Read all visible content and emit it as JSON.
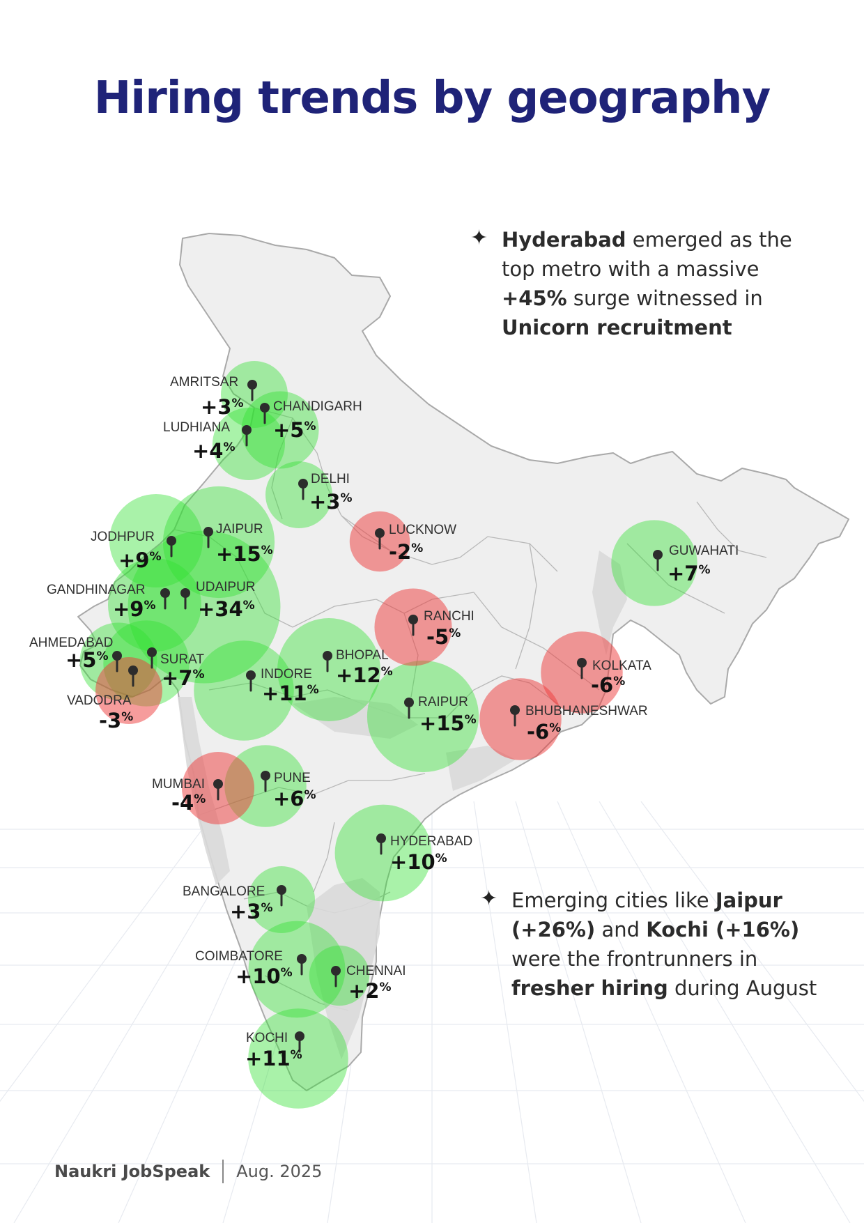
{
  "title": "Hiring trends by geography",
  "callouts": [
    {
      "parts": [
        {
          "text": "Hyderabad",
          "bold": true
        },
        {
          "text": " emerged as the top metro with a massive ",
          "bold": false
        },
        {
          "text": "+45%",
          "bold": true
        },
        {
          "text": " surge witnessed in ",
          "bold": false
        },
        {
          "text": "Unicorn recruitment",
          "bold": true
        }
      ]
    },
    {
      "parts": [
        {
          "text": "Emerging cities like ",
          "bold": false
        },
        {
          "text": "Jaipur (+26%)",
          "bold": true
        },
        {
          "text": " and ",
          "bold": false
        },
        {
          "text": "Kochi (+16%)",
          "bold": true
        },
        {
          "text": " were the frontrunners in ",
          "bold": false
        },
        {
          "text": "fresher hiring",
          "bold": true
        },
        {
          "text": " during August",
          "bold": false
        }
      ]
    }
  ],
  "cities": [
    {
      "name": "AMRITSAR",
      "change": 3,
      "label": "+3"
    },
    {
      "name": "CHANDIGARH",
      "change": 5,
      "label": "+5"
    },
    {
      "name": "LUDHIANA",
      "change": 4,
      "label": "+4"
    },
    {
      "name": "DELHI",
      "change": 3,
      "label": "+3"
    },
    {
      "name": "LUCKNOW",
      "change": -2,
      "label": "-2"
    },
    {
      "name": "GUWAHATI",
      "change": 7,
      "label": "+7"
    },
    {
      "name": "JODHPUR",
      "change": 9,
      "label": "+9"
    },
    {
      "name": "JAIPUR",
      "change": 15,
      "label": "+15"
    },
    {
      "name": "GANDHINAGAR",
      "change": 9,
      "label": "+9"
    },
    {
      "name": "UDAIPUR",
      "change": 34,
      "label": "+34"
    },
    {
      "name": "RANCHI",
      "change": -5,
      "label": "-5"
    },
    {
      "name": "AHMEDABAD",
      "change": 5,
      "label": "+5"
    },
    {
      "name": "SURAT",
      "change": 7,
      "label": "+7"
    },
    {
      "name": "INDORE",
      "change": 11,
      "label": "+11"
    },
    {
      "name": "BHOPAL",
      "change": 12,
      "label": "+12"
    },
    {
      "name": "KOLKATA",
      "change": -6,
      "label": "-6"
    },
    {
      "name": "VADODRA",
      "change": -3,
      "label": "-3"
    },
    {
      "name": "RAIPUR",
      "change": 15,
      "label": "+15"
    },
    {
      "name": "BHUBHANESHWAR",
      "change": -6,
      "label": "-6"
    },
    {
      "name": "MUMBAI",
      "change": -4,
      "label": "-4"
    },
    {
      "name": "PUNE",
      "change": 6,
      "label": "+6"
    },
    {
      "name": "HYDERABAD",
      "change": 10,
      "label": "+10"
    },
    {
      "name": "BANGALORE",
      "change": 3,
      "label": "+3"
    },
    {
      "name": "COIMBATORE",
      "change": 10,
      "label": "+10"
    },
    {
      "name": "CHENNAI",
      "change": 2,
      "label": "+2"
    },
    {
      "name": "KOCHI",
      "change": 11,
      "label": "+11"
    }
  ],
  "percent_symbol": "%",
  "colors": {
    "positive": "#33e033",
    "negative": "#ee3a3a",
    "title": "#1f2378",
    "map_fill": "#efefef",
    "map_stroke": "#a9a9a9"
  },
  "footer": {
    "brand": "Naukri JobSpeak",
    "date": "Aug. 2025"
  }
}
